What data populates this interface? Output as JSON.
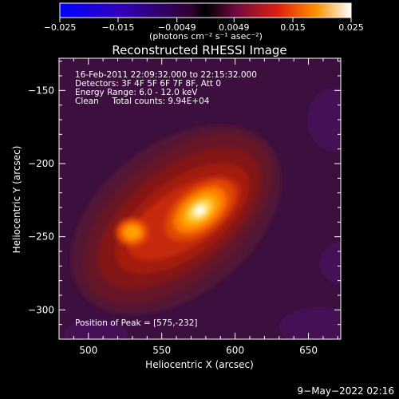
{
  "colorbar": {
    "ticks": [
      "−0.025",
      "−0.015",
      "−0.0049",
      "0.0049",
      "0.015",
      "0.025"
    ],
    "unit": "(photons cm⁻² s⁻¹ asec⁻²)"
  },
  "chart_data": {
    "type": "heatmap",
    "title": "Reconstructed RHESSI Image",
    "xlabel": "Heliocentric X (arcsec)",
    "ylabel": "Heliocentric Y (arcsec)",
    "xlim": [
      480,
      672
    ],
    "ylim": [
      -320,
      -128
    ],
    "x_ticks": [
      500,
      550,
      600,
      650
    ],
    "y_ticks": [
      -150,
      -200,
      -250,
      -300
    ],
    "info_lines": [
      "16-Feb-2011 22:09:32.000 to 22:15:32.000",
      "Detectors: 3F 4F 5F 6F 7F 8F, Att 0",
      "Energy Range: 6.0 - 12.0 keV",
      "Clean     Total counts: 9.94E+04"
    ],
    "peak_label": "Position of Peak = [575,-232]",
    "sources": [
      {
        "x": 576,
        "y": -232,
        "amplitude": 0.025
      },
      {
        "x": 530,
        "y": -247,
        "amplitude": 0.017
      }
    ],
    "colorscale_range": [
      -0.025,
      0.025
    ],
    "colormap": [
      "#0000ff",
      "#3a00c0",
      "#3a0040",
      "#000000",
      "#4a0a4a",
      "#c01010",
      "#ff6000",
      "#ffb000",
      "#ffffff"
    ]
  },
  "timestamp": "9−May−2022 02:16"
}
